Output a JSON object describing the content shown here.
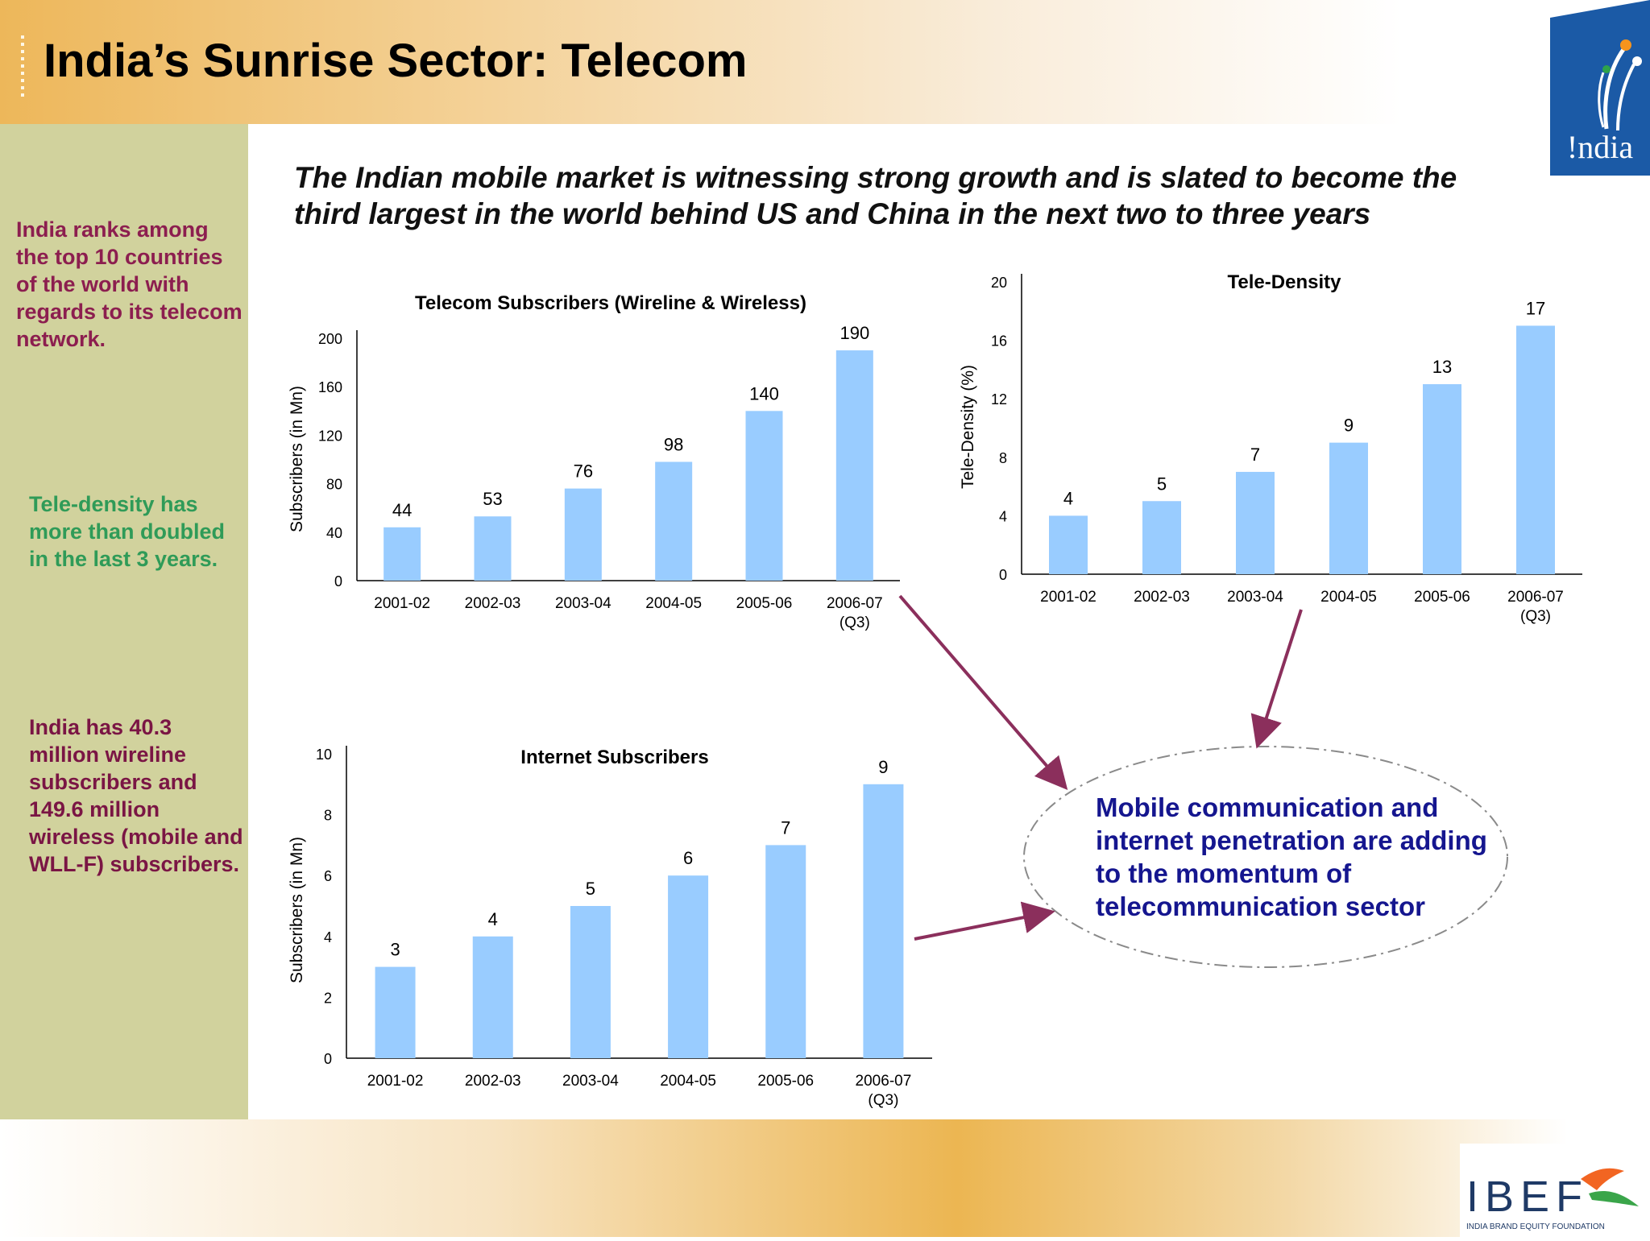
{
  "header": {
    "title": "India’s Sunrise Sector: Telecom"
  },
  "subtitle": "The Indian mobile market is witnessing strong growth and is slated to become the third largest in the world behind US and China in the next two to three years",
  "sidebar": {
    "notes": [
      "India ranks among the top 10 countries of the world with regards to its telecom network.",
      "Tele-density has more than doubled in the last 3 years.",
      "India has 40.3 million wireline subscribers and 149.6 million wireless (mobile and WLL-F) subscribers."
    ]
  },
  "callout": {
    "text": "Mobile communication and internet penetration are adding to the momentum of telecommunication sector"
  },
  "logos": {
    "india_text": "!ndia",
    "ibef_text": "IBEF",
    "ibef_tagline": "INDIA BRAND EQUITY FOUNDATION"
  },
  "colors": {
    "bar": "#99ccff",
    "arrow": "#8b2f5c",
    "callout_text": "#15168f",
    "sidebar": "#d1d29d"
  },
  "chart_data": [
    {
      "type": "bar",
      "title": "Telecom Subscribers (Wireline & Wireless)",
      "xlabel": "",
      "ylabel": "Subscribers (in Mn)",
      "categories": [
        "2001-02",
        "2002-03",
        "2003-04",
        "2004-05",
        "2005-06",
        "2006-07\n(Q3)"
      ],
      "values": [
        44,
        53,
        76,
        98,
        140,
        190
      ],
      "yticks": [
        0,
        40,
        80,
        120,
        160,
        200
      ],
      "ylim": [
        0,
        200
      ],
      "grid": false,
      "legend": "none"
    },
    {
      "type": "bar",
      "title": "Tele-Density",
      "xlabel": "",
      "ylabel": "Tele-Density (%)",
      "categories": [
        "2001-02",
        "2002-03",
        "2003-04",
        "2004-05",
        "2005-06",
        "2006-07\n(Q3)"
      ],
      "values": [
        4,
        5,
        7,
        9,
        13,
        17
      ],
      "yticks": [
        0,
        4,
        8,
        12,
        16,
        20
      ],
      "ylim": [
        0,
        20
      ],
      "grid": false,
      "legend": "none"
    },
    {
      "type": "bar",
      "title": "Internet Subscribers",
      "xlabel": "",
      "ylabel": "Subscribers (in Mn)",
      "categories": [
        "2001-02",
        "2002-03",
        "2003-04",
        "2004-05",
        "2005-06",
        "2006-07\n(Q3)"
      ],
      "values": [
        3,
        4,
        5,
        6,
        7,
        9
      ],
      "yticks": [
        0,
        2,
        4,
        6,
        8,
        10
      ],
      "ylim": [
        0,
        10
      ],
      "grid": false,
      "legend": "none"
    }
  ]
}
